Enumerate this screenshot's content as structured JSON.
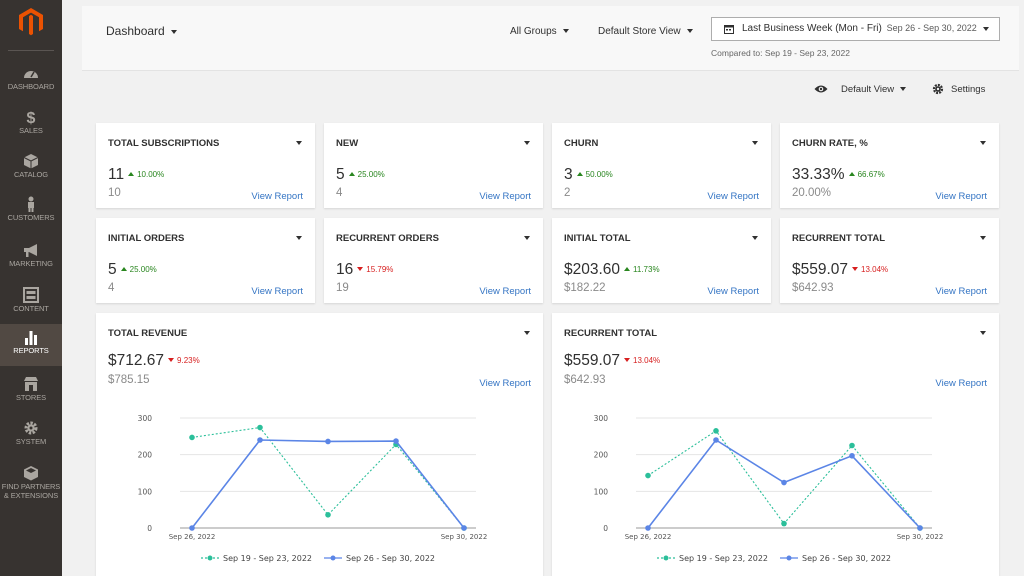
{
  "sidebar": {
    "items": [
      {
        "label": "DASHBOARD",
        "icon": "dashboard-icon"
      },
      {
        "label": "SALES",
        "icon": "dollar-icon"
      },
      {
        "label": "CATALOG",
        "icon": "box-icon"
      },
      {
        "label": "CUSTOMERS",
        "icon": "person-icon"
      },
      {
        "label": "MARKETING",
        "icon": "megaphone-icon"
      },
      {
        "label": "CONTENT",
        "icon": "layout-icon"
      },
      {
        "label": "REPORTS",
        "icon": "bar-chart-icon"
      },
      {
        "label": "STORES",
        "icon": "store-icon"
      },
      {
        "label": "SYSTEM",
        "icon": "gear-icon"
      },
      {
        "label": "FIND PARTNERS & EXTENSIONS",
        "icon": "cube-icon"
      }
    ]
  },
  "header": {
    "title": "Dashboard",
    "groups": "All Groups",
    "store_view": "Default Store View",
    "date_label": "Last Business Week (Mon - Fri)",
    "date_range": "Sep 26 - Sep 30, 2022",
    "compared": "Compared to: Sep 19 - Sep 23, 2022"
  },
  "viewbar": {
    "view": "Default View",
    "settings": "Settings"
  },
  "cards": [
    {
      "title": "TOTAL SUBSCRIPTIONS",
      "value": "11",
      "delta": "10.00%",
      "dir": "up",
      "prev": "10",
      "link": "View Report"
    },
    {
      "title": "NEW",
      "value": "5",
      "delta": "25.00%",
      "dir": "up",
      "prev": "4",
      "link": "View Report"
    },
    {
      "title": "CHURN",
      "value": "3",
      "delta": "50.00%",
      "dir": "up",
      "prev": "2",
      "link": "View Report"
    },
    {
      "title": "CHURN RATE, %",
      "value": "33.33%",
      "delta": "66.67%",
      "dir": "up",
      "prev": "20.00%",
      "link": "View Report"
    },
    {
      "title": "INITIAL ORDERS",
      "value": "5",
      "delta": "25.00%",
      "dir": "up",
      "prev": "4",
      "link": "View Report"
    },
    {
      "title": "RECURRENT ORDERS",
      "value": "16",
      "delta": "15.79%",
      "dir": "down",
      "prev": "19",
      "link": "View Report"
    },
    {
      "title": "INITIAL TOTAL",
      "value": "$203.60",
      "delta": "11.73%",
      "dir": "up",
      "prev": "$182.22",
      "link": "View Report"
    },
    {
      "title": "RECURRENT TOTAL",
      "value": "$559.07",
      "delta": "13.04%",
      "dir": "down",
      "prev": "$642.93",
      "link": "View Report"
    }
  ],
  "big_cards": [
    {
      "title": "TOTAL REVENUE",
      "value": "$712.67",
      "delta": "9.23%",
      "dir": "down",
      "prev": "$785.15",
      "link": "View Report"
    },
    {
      "title": "RECURRENT TOTAL",
      "value": "$559.07",
      "delta": "13.04%",
      "dir": "down",
      "prev": "$642.93",
      "link": "View Report"
    }
  ],
  "colors": {
    "prev_series": "#2bbf9a",
    "curr_series": "#5b85e6",
    "link": "#3575c4",
    "up": "#29861f",
    "down": "#d71f1f",
    "sidebar": "#373330",
    "logo": "#eb5202"
  },
  "chart_data": [
    {
      "type": "line",
      "x": [
        "Sep 26, 2022",
        "",
        "",
        "",
        "Sep 30, 2022"
      ],
      "ylim": [
        0,
        300
      ],
      "yticks": [
        "0",
        "100",
        "200",
        "300"
      ],
      "series": [
        {
          "name": "Sep 19 - Sep 23, 2022",
          "values": [
            247,
            274,
            36,
            228,
            0
          ],
          "style": "dotted"
        },
        {
          "name": "Sep 26 - Sep 30, 2022",
          "values": [
            0,
            240,
            236,
            237,
            0
          ],
          "style": "solid"
        }
      ],
      "legend": "bottom"
    },
    {
      "type": "line",
      "x": [
        "Sep 26, 2022",
        "",
        "",
        "",
        "Sep 30, 2022"
      ],
      "ylim": [
        0,
        300
      ],
      "yticks": [
        "0",
        "100",
        "200",
        "300"
      ],
      "series": [
        {
          "name": "Sep 19 - Sep 23, 2022",
          "values": [
            143,
            265,
            12,
            225,
            0
          ],
          "style": "dotted"
        },
        {
          "name": "Sep 26 - Sep 30, 2022",
          "values": [
            0,
            240,
            124,
            197,
            0
          ],
          "style": "solid"
        }
      ],
      "legend": "bottom"
    }
  ]
}
